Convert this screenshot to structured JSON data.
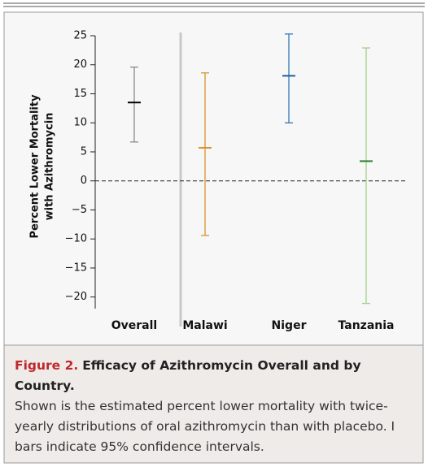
{
  "chart_data": {
    "type": "errorbar",
    "ylabel": [
      "Percent Lower Mortality",
      "with Azithromycin"
    ],
    "categories": [
      "Overall",
      "Malawi",
      "Niger",
      "Tanzania"
    ],
    "values": [
      13.5,
      5.7,
      18.1,
      3.4
    ],
    "lower": [
      6.7,
      -9.4,
      10.0,
      -21.1
    ],
    "upper": [
      19.6,
      18.6,
      25.3,
      22.9
    ],
    "colors": [
      "#8a8a8a",
      "#d9932f",
      "#3577b8",
      "#9fd18a"
    ],
    "mean_colors": [
      "#000000",
      "#d9932f",
      "#1f5f9e",
      "#2e7d32"
    ],
    "ylim": [
      -22,
      25
    ],
    "yticks": [
      25,
      20,
      15,
      10,
      5,
      0,
      {
        "value": -5,
        "label": "−5"
      },
      {
        "value": -10,
        "label": "−10"
      },
      {
        "value": -15,
        "label": "−15"
      },
      {
        "value": -20,
        "label": "−20"
      }
    ],
    "reference_line": 0,
    "caption": {
      "label": "Figure 2.",
      "title": "Efficacy of Azithromycin Overall and by Country.",
      "text": "Shown is the estimated percent lower mortality with twice-yearly distributions of oral azithromycin than with placebo. I bars indicate 95% confidence intervals."
    }
  }
}
